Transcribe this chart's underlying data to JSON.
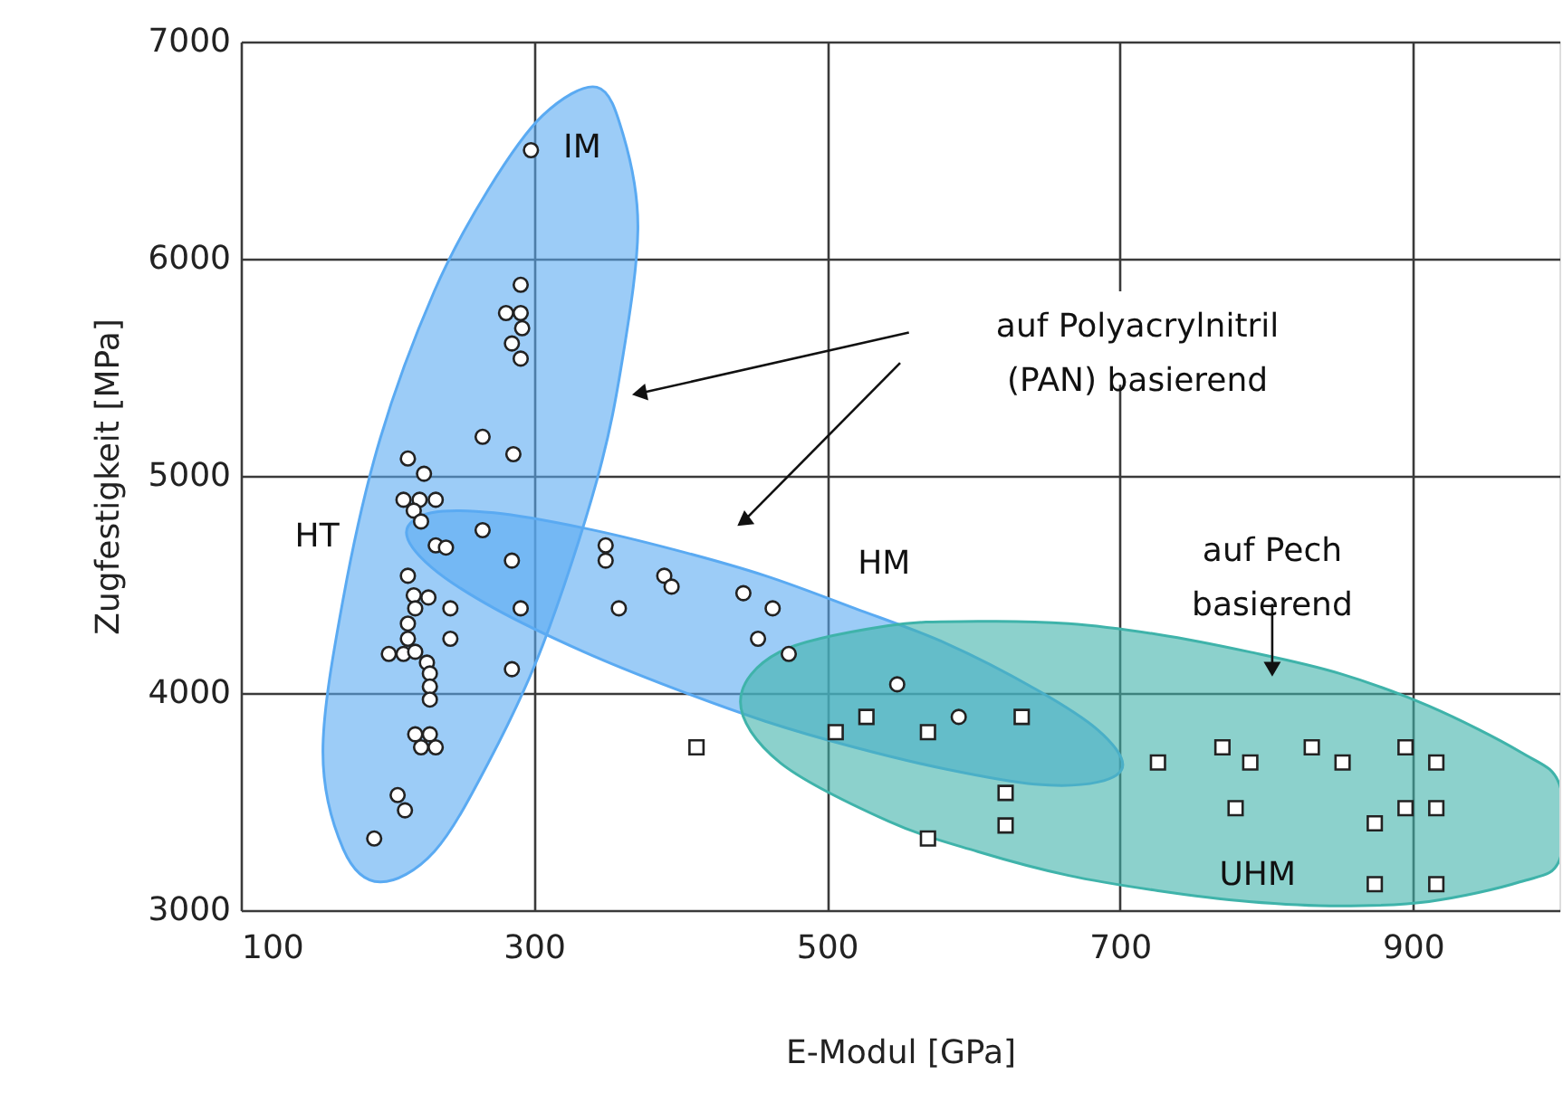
{
  "chart_data": {
    "type": "scatter",
    "xlabel": "E-Modul [GPa]",
    "ylabel": "Zugfestigkeit [MPa]",
    "xlim": [
      100,
      1000
    ],
    "xticks": [
      100,
      300,
      500,
      700,
      900
    ],
    "ylim": [
      3000,
      7000
    ],
    "yticks": [
      3000,
      4000,
      5000,
      6000,
      7000
    ],
    "grid": true,
    "series": [
      {
        "type": "area",
        "color": "#5aaaf2",
        "x": [
          156,
          170,
          195,
          232,
          269,
          306,
          343,
          361,
          371,
          361,
          343,
          306,
          269,
          232,
          195,
          170
        ],
        "values": [
          3730,
          4440,
          5170,
          5850,
          6320,
          6660,
          6790,
          6570,
          6150,
          5560,
          4980,
          4220,
          3680,
          3270,
          3130,
          3280
        ]
      },
      {
        "type": "area",
        "color": "#5aaaf2",
        "x": [
          213,
          230,
          273,
          334,
          396,
          458,
          519,
          581,
          642,
          685,
          702,
          685,
          642,
          581,
          519,
          458,
          396,
          334,
          273,
          230
        ],
        "values": [
          4740,
          4830,
          4830,
          4760,
          4660,
          4540,
          4390,
          4230,
          4020,
          3830,
          3670,
          3590,
          3580,
          3650,
          3750,
          3870,
          4020,
          4190,
          4390,
          4580
        ]
      },
      {
        "type": "area",
        "color": "#3fb3aa",
        "x": [
          441,
          468,
          542,
          603,
          665,
          726,
          788,
          850,
          911,
          973,
          1000,
          1000,
          973,
          911,
          850,
          788,
          726,
          665,
          603,
          542,
          468
        ],
        "values": [
          3960,
          4190,
          4310,
          4330,
          4320,
          4270,
          4190,
          4090,
          3940,
          3730,
          3580,
          3230,
          3130,
          3040,
          3020,
          3040,
          3090,
          3160,
          3270,
          3410,
          3680
        ]
      },
      {
        "marker": "circle",
        "color": "#ffffff",
        "x": [
          298,
          291,
          281,
          291,
          292,
          285,
          291,
          265,
          286,
          214,
          225,
          211,
          222,
          233,
          218,
          223,
          265,
          233,
          240,
          285,
          214,
          218,
          228,
          243,
          291,
          219,
          214,
          214,
          243,
          201,
          211,
          219,
          227,
          229,
          285,
          229,
          229,
          219,
          229,
          223,
          233,
          207,
          212,
          191,
          349,
          349,
          358,
          389,
          394,
          443,
          463,
          453,
          474,
          548,
          590
        ],
        "values": [
          6500,
          5880,
          5750,
          5750,
          5680,
          5610,
          5540,
          5180,
          5100,
          5080,
          5010,
          4890,
          4890,
          4890,
          4840,
          4790,
          4750,
          4680,
          4670,
          4610,
          4540,
          4450,
          4440,
          4390,
          4390,
          4390,
          4320,
          4250,
          4250,
          4180,
          4180,
          4190,
          4140,
          4090,
          4110,
          4030,
          3970,
          3810,
          3810,
          3750,
          3750,
          3530,
          3460,
          3330,
          4680,
          4610,
          4390,
          4540,
          4490,
          4460,
          4390,
          4250,
          4180,
          4040,
          3890
        ]
      },
      {
        "marker": "square",
        "color": "#ffffff",
        "x": [
          411,
          506,
          527,
          569,
          633,
          622,
          622,
          569,
          726,
          770,
          789,
          831,
          852,
          895,
          916,
          779,
          895,
          916,
          874,
          874,
          916
        ],
        "values": [
          3750,
          3820,
          3890,
          3820,
          3890,
          3540,
          3390,
          3330,
          3680,
          3750,
          3680,
          3750,
          3680,
          3750,
          3680,
          3470,
          3470,
          3470,
          3400,
          3120,
          3120
        ]
      }
    ],
    "annotations": [
      "IM",
      "HT",
      "HM",
      "UHM",
      "auf Polyacrylnitril\n(PAN) basierend",
      "auf Pech\nbasierend"
    ]
  }
}
